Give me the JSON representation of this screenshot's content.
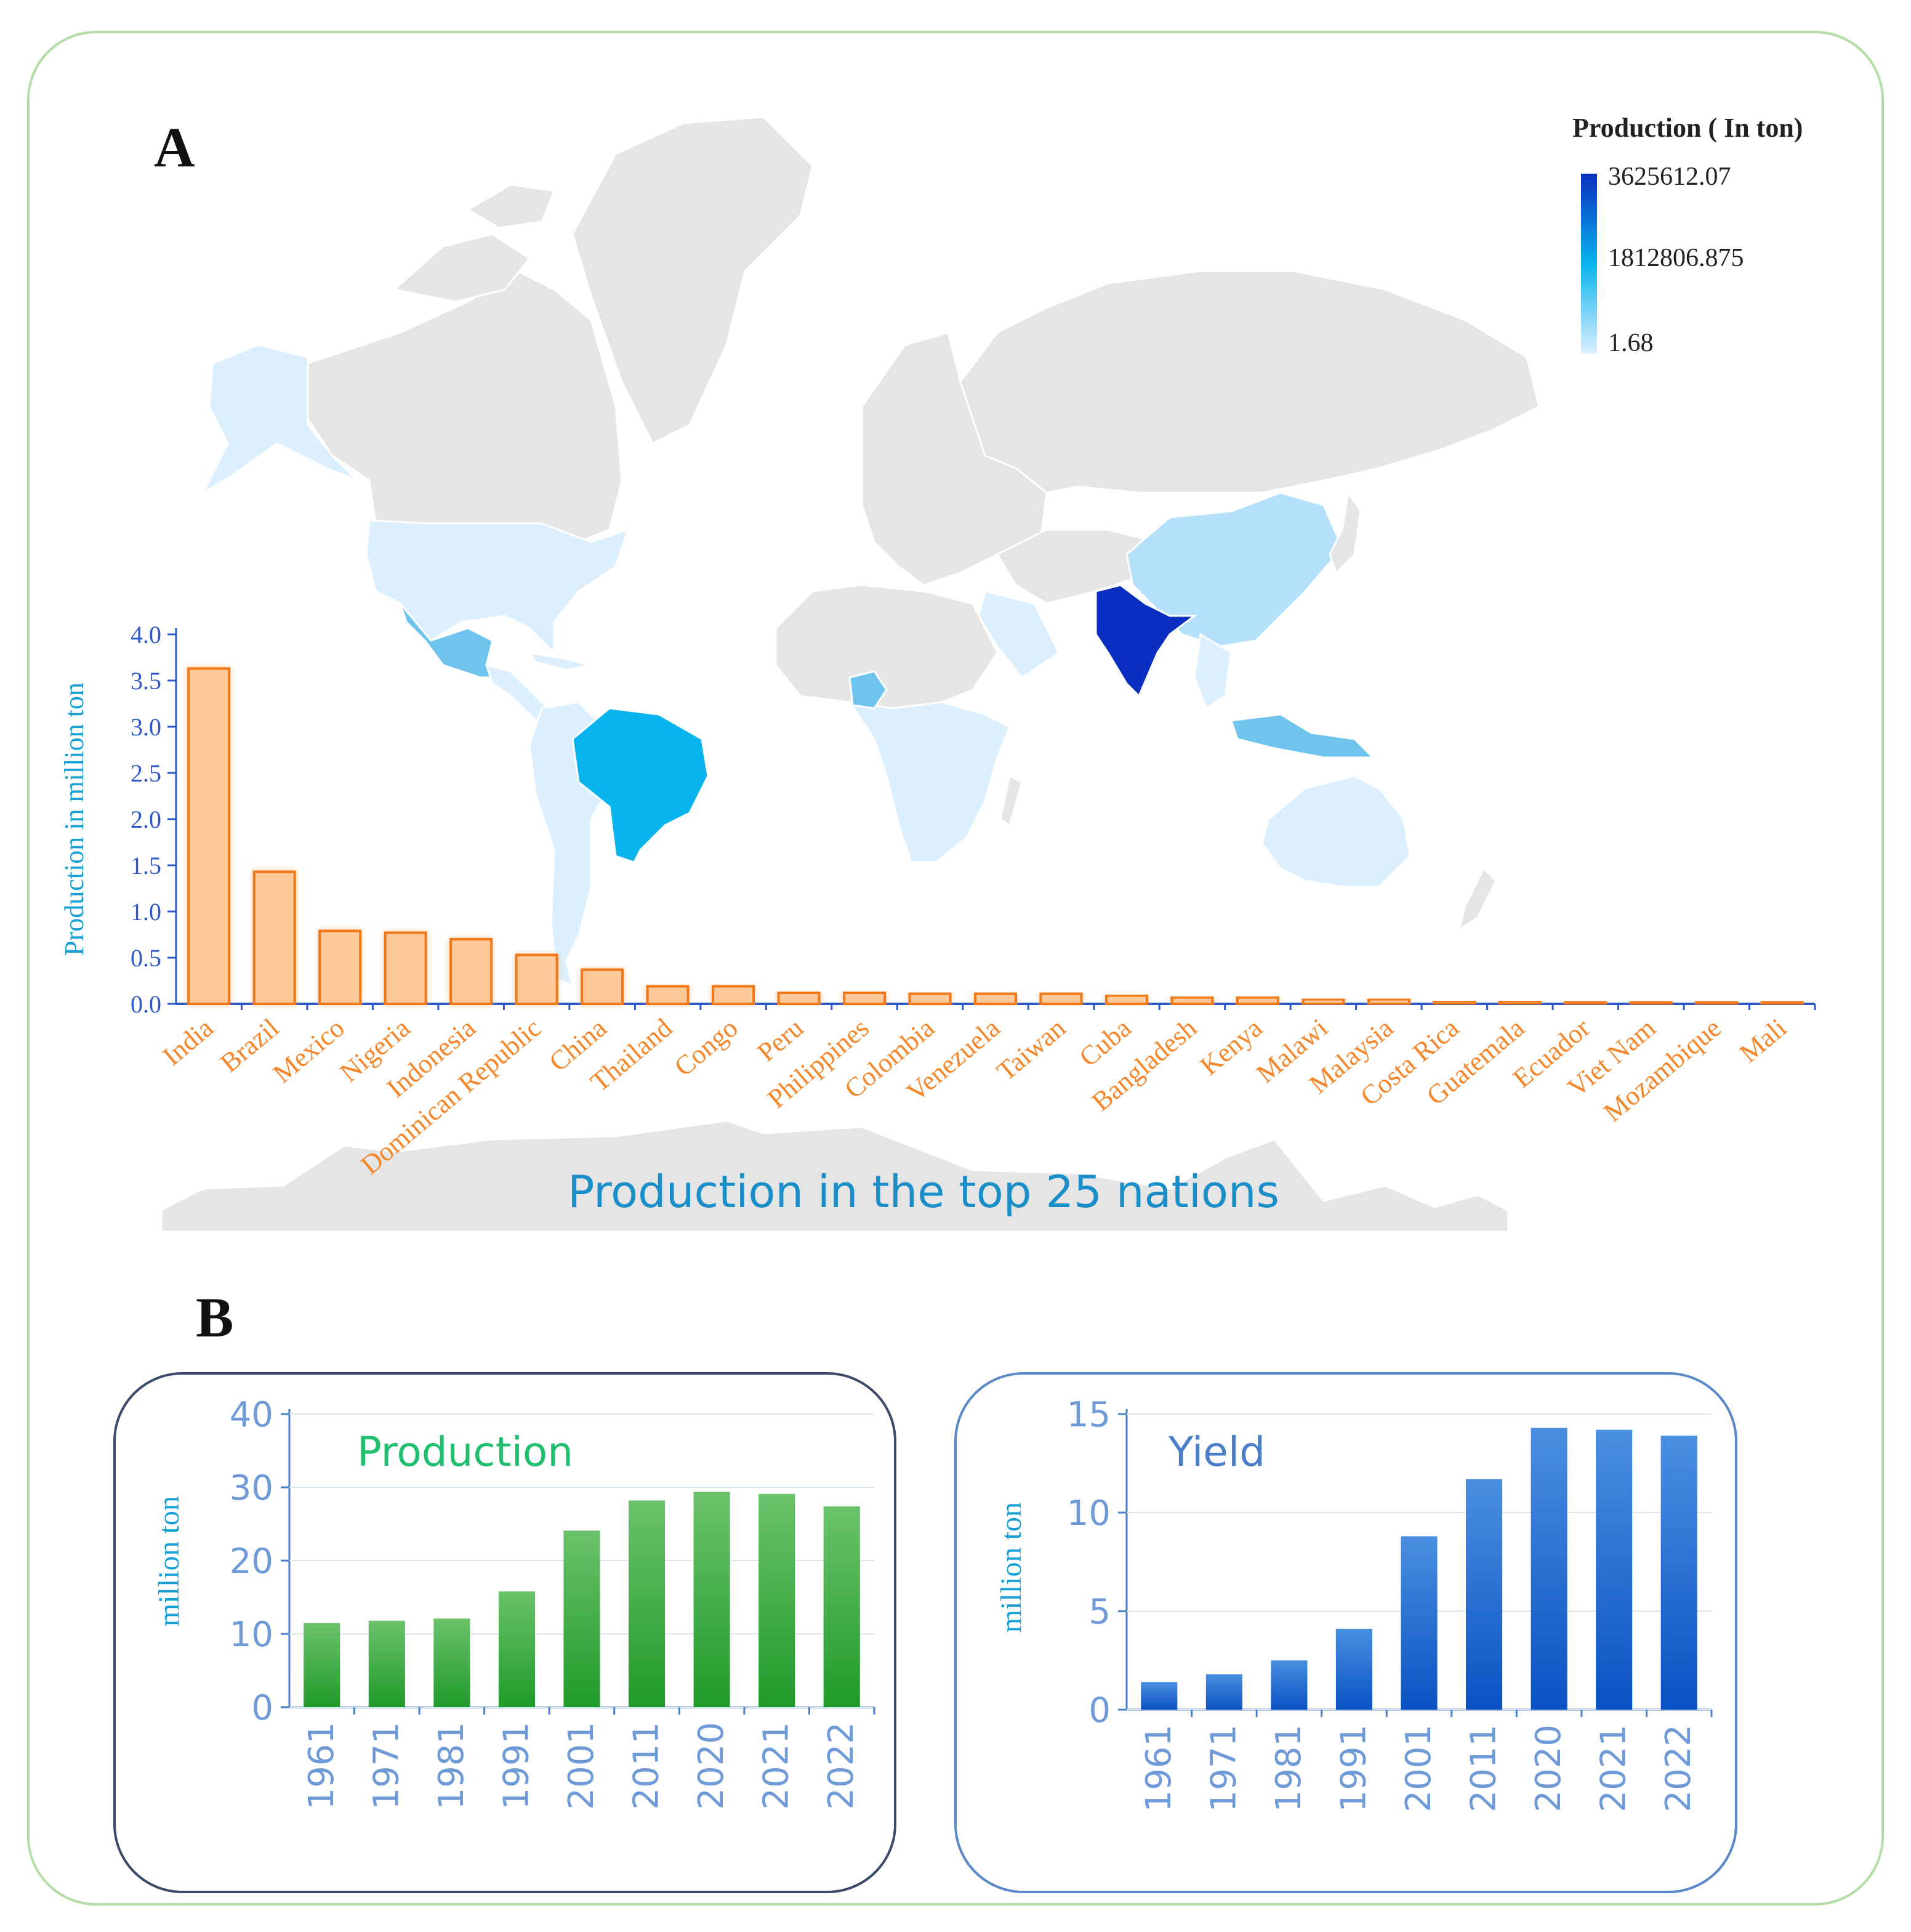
{
  "panels": {
    "a_label": "A",
    "b_label": "B"
  },
  "map_legend": {
    "title": "Production ( In ton)",
    "max_label": "3625612.07",
    "mid_label": "1812806.875",
    "min_label": "1.68",
    "colors": [
      "#0a2fc0",
      "#08b4ee",
      "#dcefff"
    ]
  },
  "colors": {
    "land": "#e5e5e5",
    "land_stroke": "#ffffff",
    "orange_bar": "#ffc99a",
    "orange_edge": "#f07818",
    "country_label": "#f5862a",
    "axis_blue": "#2e58c8",
    "ylabel_blue": "#16a0d6",
    "caption_blue": "#1a8ec8",
    "green_title": "#1fbf6e",
    "yield_title": "#4a7ec8",
    "outer_border": "#b4dca6",
    "box_b1": "#3a4a68",
    "box_b2": "#5a88c8"
  },
  "chart_data": [
    {
      "id": "top25",
      "type": "bar",
      "title": "Production in the top 25 nations",
      "ylabel": "Production in million ton",
      "xlabel": "",
      "ylim": [
        0,
        4.0
      ],
      "yticks": [
        "0.0",
        "0.5",
        "1.0",
        "1.5",
        "2.0",
        "2.5",
        "3.0",
        "3.5",
        "4.0"
      ],
      "categories": [
        "India",
        "Brazil",
        "Mexico",
        "Nigeria",
        "Indonesia",
        "Dominican Republic",
        "China",
        "Thailand",
        "Congo",
        "Peru",
        "Philippines",
        "Colombia",
        "Venezuela",
        "Taiwan",
        "Cuba",
        "Bangladesh",
        "Kenya",
        "Malawi",
        "Malaysia",
        "Costa Rica",
        "Guatemala",
        "Ecuador",
        "Viet Nam",
        "Mozambique",
        "Mali"
      ],
      "values": [
        3.63,
        1.43,
        0.79,
        0.77,
        0.7,
        0.53,
        0.37,
        0.19,
        0.19,
        0.12,
        0.12,
        0.11,
        0.11,
        0.11,
        0.09,
        0.07,
        0.07,
        0.05,
        0.05,
        0.03,
        0.03,
        0.02,
        0.02,
        0.02,
        0.02
      ]
    },
    {
      "id": "production",
      "type": "bar",
      "title": "Production",
      "ylabel": "million ton",
      "xlabel": "",
      "ylim": [
        0,
        40
      ],
      "yticks": [
        "0",
        "10",
        "20",
        "30",
        "40"
      ],
      "categories": [
        "1961",
        "1971",
        "1981",
        "1991",
        "2001",
        "2011",
        "2020",
        "2021",
        "2022"
      ],
      "values": [
        11.5,
        11.8,
        12.1,
        15.8,
        24.1,
        28.2,
        29.4,
        29.1,
        27.4
      ]
    },
    {
      "id": "yield",
      "type": "bar",
      "title": "Yield",
      "ylabel": "million ton",
      "xlabel": "",
      "ylim": [
        0,
        15
      ],
      "yticks": [
        "0",
        "5",
        "10",
        "15"
      ],
      "categories": [
        "1961",
        "1971",
        "1981",
        "1991",
        "2001",
        "2011",
        "2020",
        "2021",
        "2022"
      ],
      "values": [
        1.4,
        1.8,
        2.5,
        4.1,
        8.8,
        11.7,
        14.3,
        14.2,
        13.9
      ]
    }
  ]
}
